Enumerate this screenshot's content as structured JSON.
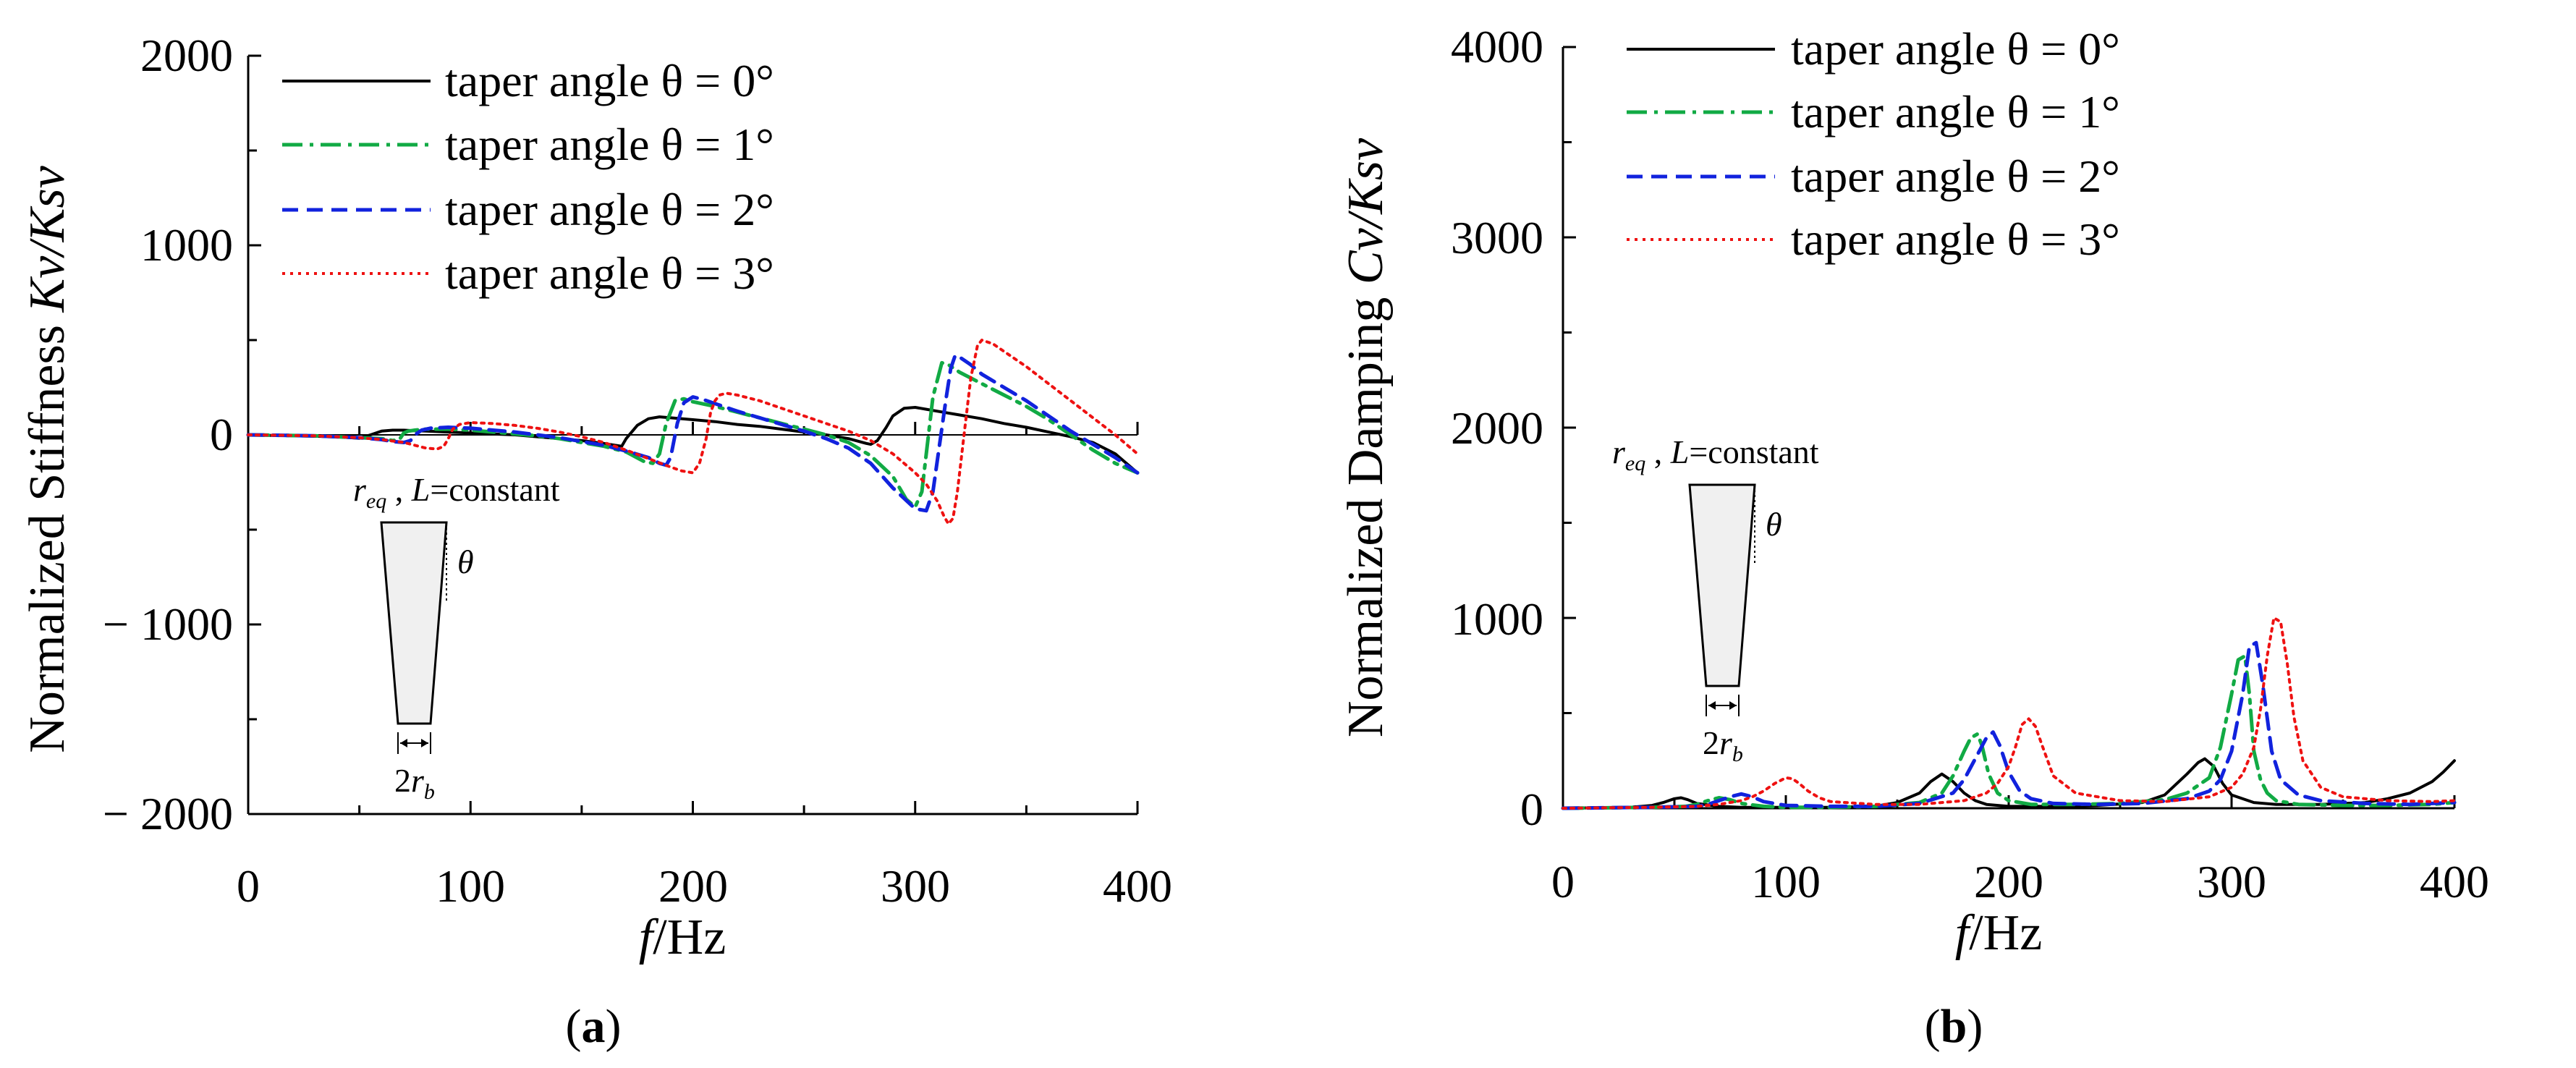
{
  "chart_data": [
    {
      "type": "line",
      "panel_label": "a",
      "xlabel_italic": "f",
      "xlabel_rest": "/Hz",
      "ylabel_prefix": "Normalized Stiffness ",
      "ylabel_italic": "Kv/Ksv",
      "xlim": [
        0,
        400
      ],
      "ylim": [
        -2000,
        2000
      ],
      "xticks": [
        0,
        100,
        200,
        300,
        400
      ],
      "xtick_labels": [
        "0",
        "100",
        "200",
        "300",
        "400"
      ],
      "yticks": [
        2000,
        1000,
        0,
        -1000,
        -2000
      ],
      "ytick_labels": [
        "2000",
        "1000",
        "0",
        "− 1000",
        "− 2000"
      ],
      "legend": [
        "taper angle θ = 0°",
        "taper angle θ = 1°",
        "taper angle θ = 2°",
        "taper angle θ = 3°"
      ],
      "inset": {
        "label_r": "r",
        "label_r_sub": "eq",
        "label_rest": " , ",
        "label_L": "L",
        "label_constant": "=constant",
        "theta": "θ",
        "base_label_2": "2",
        "base_label_r": "r",
        "base_label_sub": "b"
      },
      "series": [
        {
          "name": "taper angle θ = 0°",
          "color": "#000000",
          "x": [
            0,
            40,
            50,
            55,
            60,
            65,
            70,
            75,
            80,
            90,
            100,
            110,
            120,
            130,
            140,
            150,
            160,
            165,
            168,
            170,
            175,
            180,
            185,
            190,
            200,
            210,
            220,
            230,
            240,
            250,
            260,
            270,
            278,
            280,
            283,
            287,
            290,
            295,
            300,
            305,
            310,
            320,
            330,
            340,
            350,
            360,
            370,
            380,
            390,
            400
          ],
          "y": [
            0,
            -10,
            -18,
            0,
            20,
            25,
            25,
            22,
            20,
            15,
            10,
            5,
            0,
            -10,
            -20,
            -30,
            -45,
            -55,
            -60,
            -20,
            50,
            85,
            95,
            90,
            80,
            70,
            55,
            45,
            30,
            15,
            0,
            -20,
            -45,
            -50,
            -30,
            40,
            100,
            140,
            145,
            135,
            125,
            105,
            85,
            60,
            40,
            15,
            -10,
            -40,
            -100,
            -200
          ]
        },
        {
          "name": "taper angle θ = 1°",
          "color": "#11aa44",
          "x": [
            0,
            30,
            50,
            60,
            65,
            68,
            70,
            72,
            75,
            80,
            90,
            100,
            110,
            120,
            130,
            140,
            150,
            160,
            170,
            178,
            182,
            185,
            188,
            192,
            196,
            200,
            210,
            220,
            230,
            240,
            250,
            260,
            270,
            280,
            290,
            296,
            300,
            303,
            305,
            308,
            312,
            315,
            320,
            330,
            340,
            350,
            360,
            370,
            380,
            390,
            400
          ],
          "y": [
            0,
            -5,
            -15,
            -20,
            -30,
            -25,
            10,
            20,
            25,
            30,
            30,
            25,
            15,
            5,
            -5,
            -20,
            -40,
            -60,
            -90,
            -140,
            -150,
            -100,
            60,
            180,
            190,
            175,
            150,
            120,
            90,
            60,
            30,
            0,
            -40,
            -110,
            -220,
            -340,
            -380,
            -300,
            -100,
            200,
            380,
            370,
            330,
            270,
            210,
            150,
            80,
            0,
            -80,
            -150,
            -200
          ]
        },
        {
          "name": "taper angle θ = 2°",
          "color": "#1122dd",
          "x": [
            0,
            30,
            50,
            60,
            65,
            70,
            73,
            75,
            78,
            82,
            90,
            100,
            110,
            120,
            130,
            140,
            150,
            160,
            170,
            180,
            185,
            188,
            190,
            193,
            196,
            200,
            205,
            210,
            220,
            230,
            240,
            250,
            260,
            270,
            280,
            290,
            300,
            305,
            308,
            311,
            314,
            316,
            318,
            320,
            325,
            330,
            340,
            350,
            360,
            370,
            380,
            390,
            400
          ],
          "y": [
            0,
            -5,
            -15,
            -25,
            -35,
            -40,
            -30,
            0,
            25,
            35,
            40,
            35,
            25,
            15,
            0,
            -15,
            -35,
            -55,
            -85,
            -120,
            -150,
            -160,
            -120,
            60,
            170,
            200,
            185,
            165,
            125,
            90,
            55,
            20,
            -20,
            -70,
            -150,
            -280,
            -390,
            -400,
            -300,
            -50,
            200,
            350,
            420,
            410,
            370,
            320,
            250,
            180,
            100,
            20,
            -50,
            -120,
            -200
          ]
        },
        {
          "name": "taper angle θ = 3°",
          "color": "#ee1111",
          "x": [
            0,
            30,
            50,
            60,
            70,
            75,
            80,
            85,
            88,
            90,
            92,
            95,
            100,
            110,
            120,
            130,
            140,
            150,
            160,
            170,
            180,
            190,
            195,
            200,
            203,
            206,
            208,
            210,
            212,
            215,
            220,
            230,
            240,
            250,
            260,
            270,
            280,
            290,
            300,
            305,
            310,
            313,
            315,
            317,
            319,
            322,
            325,
            328,
            330,
            335,
            340,
            350,
            360,
            370,
            380,
            390,
            400
          ],
          "y": [
            0,
            -5,
            -15,
            -25,
            -40,
            -55,
            -70,
            -75,
            -60,
            -20,
            30,
            55,
            65,
            60,
            50,
            35,
            15,
            -10,
            -40,
            -80,
            -125,
            -170,
            -190,
            -200,
            -150,
            -20,
            120,
            180,
            210,
            220,
            210,
            180,
            140,
            100,
            60,
            20,
            -30,
            -100,
            -200,
            -260,
            -350,
            -430,
            -470,
            -440,
            -300,
            0,
            300,
            470,
            500,
            480,
            440,
            360,
            270,
            180,
            90,
            0,
            -100
          ]
        }
      ]
    },
    {
      "type": "line",
      "panel_label": "b",
      "xlabel_italic": "f",
      "xlabel_rest": "/Hz",
      "ylabel_prefix": "Normalized Damping ",
      "ylabel_italic": "Cv/Ksv",
      "xlim": [
        0,
        400
      ],
      "ylim": [
        0,
        4000
      ],
      "xticks": [
        0,
        100,
        200,
        300,
        400
      ],
      "xtick_labels": [
        "0",
        "100",
        "200",
        "300",
        "400"
      ],
      "yticks": [
        4000,
        3000,
        2000,
        1000,
        0
      ],
      "ytick_labels": [
        "4000",
        "3000",
        "2000",
        "1000",
        "0"
      ],
      "legend": [
        "taper angle θ = 0°",
        "taper angle θ = 1°",
        "taper angle θ = 2°",
        "taper angle θ = 3°"
      ],
      "inset": {
        "label_r": "r",
        "label_r_sub": "eq",
        "label_rest": " , ",
        "label_L": "L",
        "label_constant": "=constant",
        "theta": "θ",
        "base_label_2": "2",
        "base_label_r": "r",
        "base_label_sub": "b"
      },
      "series": [
        {
          "name": "taper angle θ = 0°",
          "color": "#000000",
          "x": [
            0,
            30,
            40,
            45,
            50,
            53,
            56,
            60,
            70,
            80,
            90,
            100,
            120,
            140,
            150,
            160,
            165,
            170,
            175,
            180,
            185,
            190,
            200,
            220,
            240,
            260,
            270,
            280,
            285,
            288,
            292,
            296,
            300,
            310,
            320,
            340,
            360,
            370,
            380,
            390,
            395,
            400
          ],
          "y": [
            0,
            5,
            15,
            30,
            50,
            55,
            45,
            25,
            10,
            5,
            5,
            5,
            5,
            10,
            30,
            80,
            140,
            180,
            140,
            80,
            40,
            20,
            10,
            10,
            15,
            30,
            70,
            180,
            240,
            260,
            220,
            130,
            70,
            30,
            20,
            20,
            30,
            50,
            80,
            140,
            190,
            250
          ]
        },
        {
          "name": "taper angle θ = 1°",
          "color": "#11aa44",
          "x": [
            0,
            40,
            55,
            60,
            65,
            70,
            75,
            80,
            90,
            100,
            120,
            140,
            160,
            170,
            175,
            180,
            183,
            186,
            188,
            191,
            195,
            200,
            210,
            230,
            250,
            270,
            280,
            290,
            295,
            300,
            303,
            306,
            308,
            310,
            313,
            316,
            320,
            330,
            350,
            370,
            390,
            400
          ],
          "y": [
            0,
            5,
            10,
            20,
            40,
            55,
            45,
            25,
            10,
            5,
            5,
            10,
            30,
            80,
            170,
            300,
            370,
            390,
            330,
            180,
            80,
            40,
            20,
            20,
            25,
            45,
            80,
            160,
            320,
            600,
            780,
            800,
            600,
            300,
            150,
            80,
            40,
            20,
            15,
            15,
            20,
            30
          ]
        },
        {
          "name": "taper angle θ = 2°",
          "color": "#1122dd",
          "x": [
            0,
            40,
            60,
            65,
            70,
            75,
            80,
            85,
            90,
            100,
            120,
            140,
            160,
            175,
            180,
            185,
            190,
            193,
            196,
            200,
            205,
            210,
            220,
            240,
            260,
            280,
            290,
            295,
            300,
            305,
            308,
            311,
            314,
            318,
            322,
            330,
            340,
            360,
            380,
            400
          ],
          "y": [
            0,
            5,
            10,
            20,
            40,
            60,
            75,
            60,
            35,
            15,
            10,
            10,
            25,
            80,
            150,
            260,
            370,
            400,
            330,
            190,
            90,
            50,
            25,
            20,
            25,
            50,
            90,
            150,
            300,
            600,
            850,
            870,
            650,
            300,
            150,
            70,
            40,
            25,
            20,
            30
          ]
        },
        {
          "name": "taper angle θ = 3°",
          "color": "#ee1111",
          "x": [
            0,
            40,
            60,
            70,
            80,
            85,
            90,
            95,
            100,
            103,
            106,
            110,
            115,
            120,
            140,
            160,
            180,
            190,
            195,
            200,
            203,
            206,
            209,
            212,
            215,
            220,
            230,
            250,
            270,
            290,
            300,
            305,
            310,
            313,
            316,
            319,
            322,
            325,
            328,
            332,
            340,
            350,
            370,
            390,
            400
          ],
          "y": [
            0,
            5,
            10,
            20,
            40,
            60,
            90,
            130,
            160,
            155,
            130,
            90,
            55,
            35,
            20,
            20,
            40,
            80,
            130,
            220,
            320,
            440,
            470,
            430,
            330,
            170,
            80,
            40,
            35,
            60,
            110,
            180,
            320,
            520,
            800,
            1000,
            980,
            760,
            480,
            250,
            110,
            60,
            40,
            35,
            40
          ]
        }
      ]
    }
  ]
}
